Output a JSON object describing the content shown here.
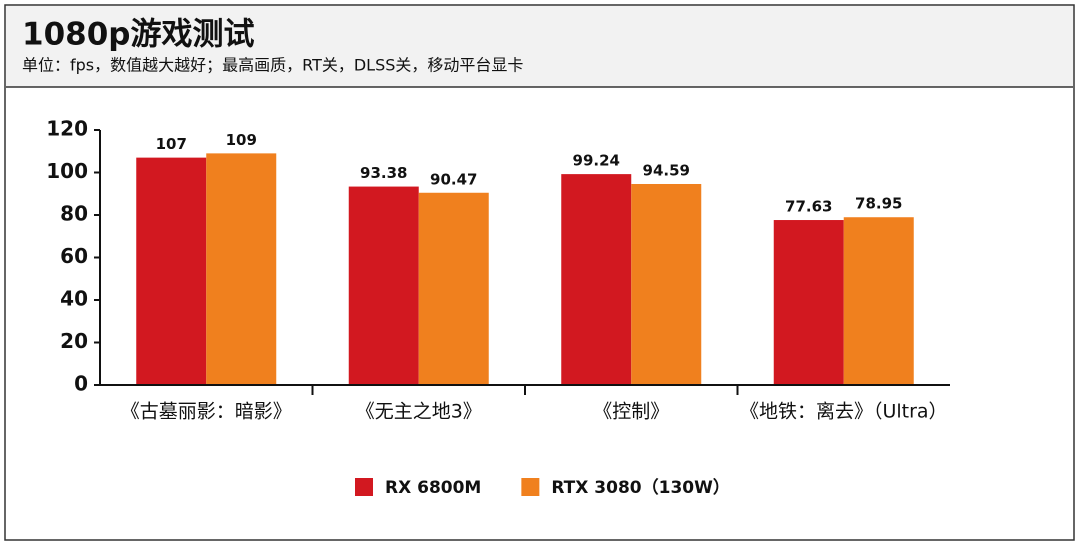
{
  "chart_data": {
    "type": "bar",
    "title": "1080p游戏测试",
    "subtitle": "单位：fps，数值越大越好；最高画质，RT关，DLSS关，移动平台显卡",
    "categories": [
      "《古墓丽影：暗影》",
      "《无主之地3》",
      "《控制》",
      "《地铁：离去》（Ultra）"
    ],
    "series": [
      {
        "name": "RX 6800M",
        "color": "#d21820",
        "values": [
          107,
          93.38,
          99.24,
          77.63
        ]
      },
      {
        "name": "RTX 3080（130W）",
        "color": "#f0801e",
        "values": [
          109,
          90.47,
          94.59,
          78.95
        ]
      }
    ],
    "ylim": [
      0,
      120
    ],
    "yticks": [
      0,
      20,
      40,
      60,
      80,
      100,
      120
    ]
  }
}
